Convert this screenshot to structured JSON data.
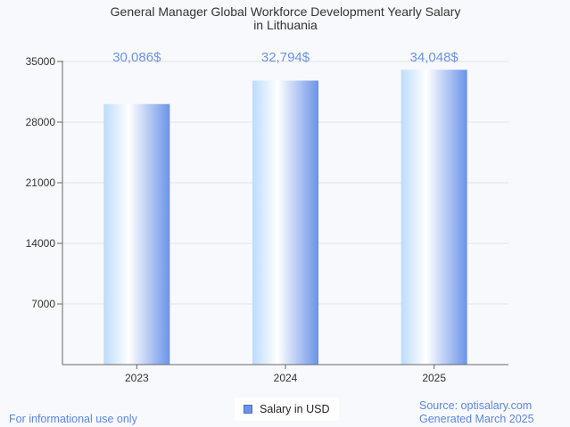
{
  "chart_data": {
    "type": "bar",
    "title": [
      "General Manager Global Workforce Development Yearly Salary",
      "in Lithuania"
    ],
    "categories": [
      "2023",
      "2024",
      "2025"
    ],
    "series": [
      {
        "name": "Salary in USD",
        "values": [
          30086,
          32794,
          34048
        ]
      }
    ],
    "data_labels": [
      "30,086$",
      "32,794$",
      "34,048$"
    ],
    "y_ticks": [
      7000,
      14000,
      21000,
      28000,
      35000
    ],
    "ylim": [
      0,
      35000
    ],
    "grid": true,
    "legend_position": "bottom-center",
    "colors": {
      "bar_light": "#ffffff",
      "bar_mid": "#bcdcfb",
      "bar_dark": "#6a93e8",
      "label": "#6a93e8"
    }
  },
  "footer": {
    "note": "For informational use only",
    "source": "Source: optisalary.com",
    "generated": "Generated March 2025"
  }
}
